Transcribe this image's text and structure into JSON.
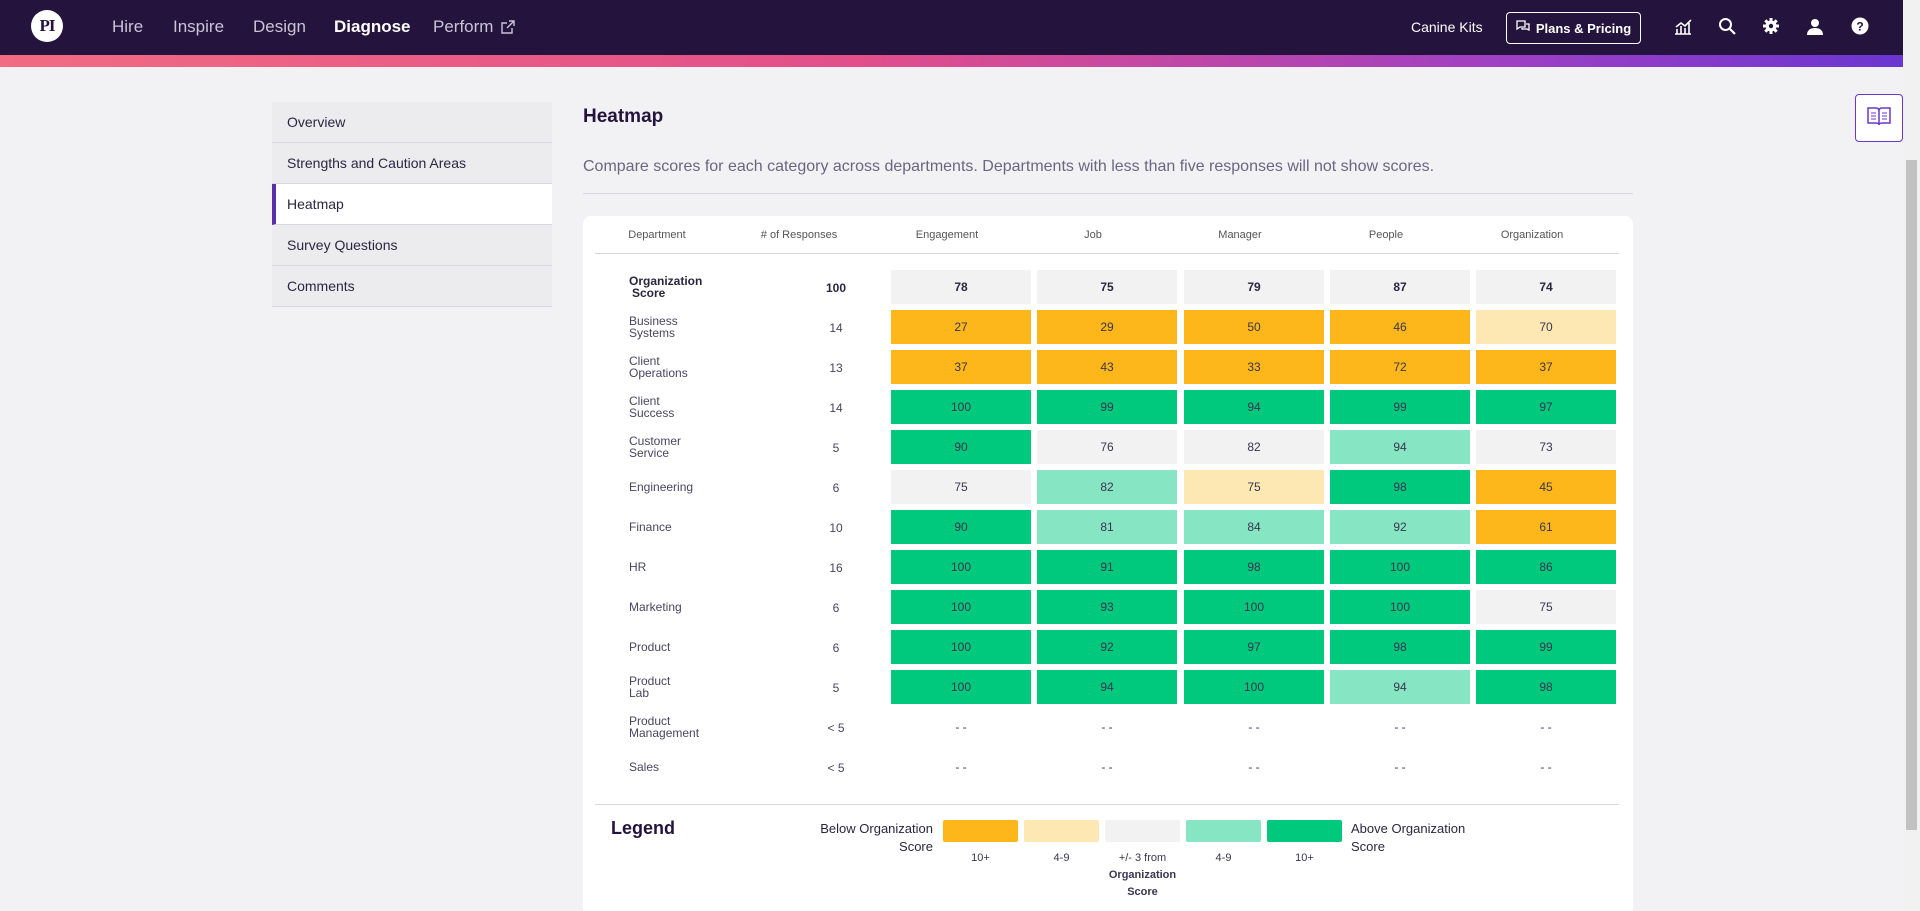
{
  "nav": {
    "logo": "PI",
    "items": [
      {
        "label": "Hire"
      },
      {
        "label": "Inspire"
      },
      {
        "label": "Design"
      },
      {
        "label": "Diagnose"
      },
      {
        "label": "Perform"
      }
    ],
    "active": "Diagnose",
    "company": "Canine Kits",
    "plans_label": "Plans & Pricing",
    "icons": [
      "analytics-icon",
      "search-icon",
      "gear-icon",
      "user-icon",
      "help-icon"
    ]
  },
  "sidebar": {
    "items": [
      {
        "label": "Overview"
      },
      {
        "label": "Strengths and Caution Areas"
      },
      {
        "label": "Heatmap"
      },
      {
        "label": "Survey Questions"
      },
      {
        "label": "Comments"
      }
    ],
    "active": "Heatmap"
  },
  "main": {
    "title": "Heatmap",
    "description": "Compare scores for each category across departments. Departments with less than five responses will not show scores."
  },
  "heatmap": {
    "columns": [
      "Department",
      "# of Responses",
      "Engagement",
      "Job",
      "Manager",
      "People",
      "Organization"
    ],
    "rows": [
      {
        "dept": "Organization Score",
        "responses": "100",
        "scores": [
          "78",
          "75",
          "79",
          "87",
          "74"
        ],
        "levels": [
          "org",
          "org",
          "org",
          "org",
          "org"
        ]
      },
      {
        "dept": "Business Systems",
        "responses": "14",
        "scores": [
          "27",
          "29",
          "50",
          "46",
          "70"
        ],
        "levels": [
          "b10",
          "b10",
          "b10",
          "b10",
          "b4"
        ]
      },
      {
        "dept": "Client Operations",
        "responses": "13",
        "scores": [
          "37",
          "43",
          "33",
          "72",
          "37"
        ],
        "levels": [
          "b10",
          "b10",
          "b10",
          "b10",
          "b10"
        ]
      },
      {
        "dept": "Client Success",
        "responses": "14",
        "scores": [
          "100",
          "99",
          "94",
          "99",
          "97"
        ],
        "levels": [
          "a10",
          "a10",
          "a10",
          "a10",
          "a10"
        ]
      },
      {
        "dept": "Customer Service",
        "responses": "5",
        "scores": [
          "90",
          "76",
          "82",
          "94",
          "73"
        ],
        "levels": [
          "a10",
          "n",
          "n",
          "a4",
          "n"
        ]
      },
      {
        "dept": "Engineering",
        "responses": "6",
        "scores": [
          "75",
          "82",
          "75",
          "98",
          "45"
        ],
        "levels": [
          "n",
          "a4",
          "b4",
          "a10",
          "b10"
        ]
      },
      {
        "dept": "Finance",
        "responses": "10",
        "scores": [
          "90",
          "81",
          "84",
          "92",
          "61"
        ],
        "levels": [
          "a10",
          "a4",
          "a4",
          "a4",
          "b10"
        ]
      },
      {
        "dept": "HR",
        "responses": "16",
        "scores": [
          "100",
          "91",
          "98",
          "100",
          "86"
        ],
        "levels": [
          "a10",
          "a10",
          "a10",
          "a10",
          "a10"
        ]
      },
      {
        "dept": "Marketing",
        "responses": "6",
        "scores": [
          "100",
          "93",
          "100",
          "100",
          "75"
        ],
        "levels": [
          "a10",
          "a10",
          "a10",
          "a10",
          "n"
        ]
      },
      {
        "dept": "Product",
        "responses": "6",
        "scores": [
          "100",
          "92",
          "97",
          "98",
          "99"
        ],
        "levels": [
          "a10",
          "a10",
          "a10",
          "a10",
          "a10"
        ]
      },
      {
        "dept": "Product Lab",
        "responses": "5",
        "scores": [
          "100",
          "94",
          "100",
          "94",
          "98"
        ],
        "levels": [
          "a10",
          "a10",
          "a10",
          "a4",
          "a10"
        ]
      },
      {
        "dept": "Product Management",
        "responses": "< 5",
        "scores": [
          "- -",
          "- -",
          "- -",
          "- -",
          "- -"
        ],
        "levels": [
          "none",
          "none",
          "none",
          "none",
          "none"
        ]
      },
      {
        "dept": "Sales",
        "responses": "< 5",
        "scores": [
          "- -",
          "- -",
          "- -",
          "- -",
          "- -"
        ],
        "levels": [
          "none",
          "none",
          "none",
          "none",
          "none"
        ]
      }
    ]
  },
  "legend": {
    "title": "Legend",
    "below_label": "Below Organization Score",
    "above_label": "Above Organization Score",
    "swatches": [
      {
        "label": "10+",
        "level": "b10"
      },
      {
        "label": "4-9",
        "level": "b4"
      },
      {
        "label": "+/- 3 from",
        "sublabel": "Organization Score",
        "level": "n"
      },
      {
        "label": "4-9",
        "level": "a4"
      },
      {
        "label": "10+",
        "level": "a10"
      }
    ]
  },
  "colors": {
    "b10": "#fdb71a",
    "b4": "#fde8b3",
    "n": "#f2f2f2",
    "a4": "#86e5c3",
    "a10": "#00c97d",
    "org": "#f2f2f2",
    "none": "transparent",
    "nav_bg": "#24133d",
    "accent": "#5b2fa6"
  }
}
